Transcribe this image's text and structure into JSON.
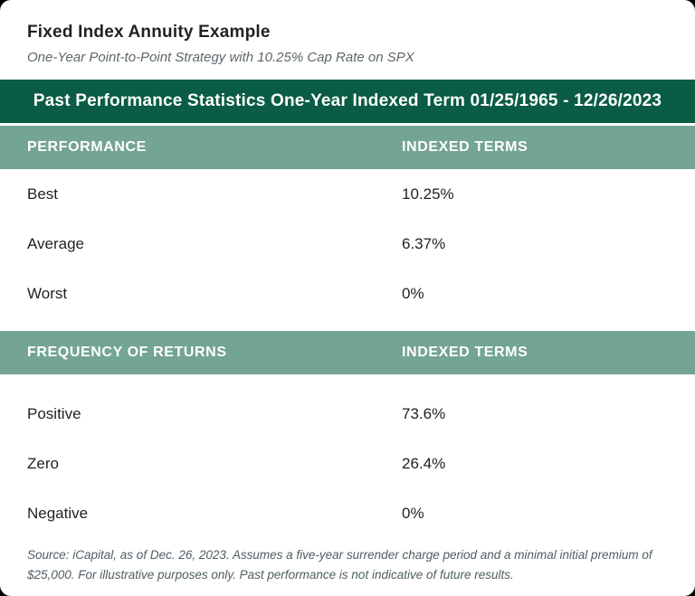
{
  "colors": {
    "banner_green": "#0a5c44",
    "header_sage": "#74a493",
    "card_background": "#ffffff",
    "page_background": "#000000",
    "title_text": "#1e2125",
    "subtitle_text": "#5c676c",
    "row_text": "#1d2125",
    "footer_text": "#4f5e63"
  },
  "header": {
    "title": "Fixed Index Annuity Example",
    "subtitle": "One-Year Point-to-Point Strategy with 10.25% Cap Rate on SPX"
  },
  "banner": {
    "text": "Past Performance Statistics One-Year Indexed Term 01/25/1965 - 12/26/2023"
  },
  "sections": [
    {
      "col1_header": "PERFORMANCE",
      "col2_header": "INDEXED TERMS",
      "rows": [
        {
          "label": "Best",
          "value": "10.25%"
        },
        {
          "label": "Average",
          "value": "6.37%"
        },
        {
          "label": "Worst",
          "value": "0%"
        }
      ]
    },
    {
      "col1_header": "FREQUENCY OF RETURNS",
      "col2_header": "INDEXED TERMS",
      "rows": [
        {
          "label": "Positive",
          "value": "73.6%"
        },
        {
          "label": "Zero",
          "value": "26.4%"
        },
        {
          "label": "Negative",
          "value": "0%"
        }
      ]
    }
  ],
  "footer": {
    "source": "Source: iCapital, as of Dec. 26, 2023. Assumes a five-year surrender charge period and a minimal initial premium of $25,000. For illustrative purposes only. Past performance is not indicative of future results."
  }
}
